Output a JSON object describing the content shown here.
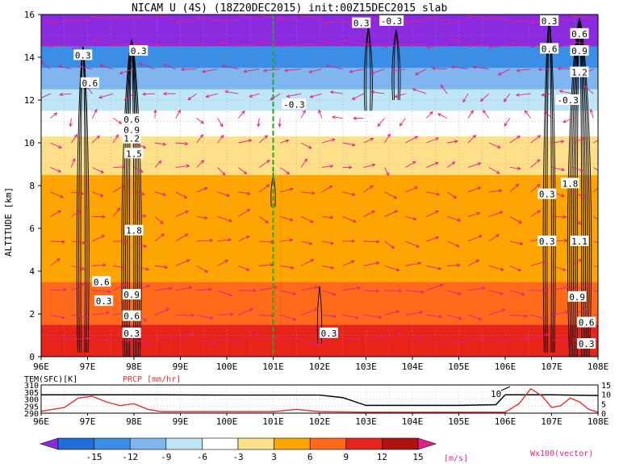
{
  "title": "NICAM U (4S) (18Z20DEC2015) init:00Z15DEC2015 slab",
  "colors": {
    "background": "#ffffff",
    "contour": "#000000",
    "vector": "#e0208a",
    "marker_line": "#22aa22",
    "precip_line": "#e03030",
    "temp_line": "#000000"
  },
  "chart_data": [
    {
      "type": "heatmap",
      "title": "NICAM U (4S) (18Z20DEC2015) init:00Z15DEC2015 slab",
      "ylabel": "ALTITUDE [km]",
      "xlabel": "",
      "xlim": [
        96,
        108
      ],
      "ylim": [
        0,
        16
      ],
      "x_ticks": [
        "96E",
        "97E",
        "98E",
        "99E",
        "100E",
        "101E",
        "102E",
        "103E",
        "104E",
        "105E",
        "106E",
        "107E",
        "108E"
      ],
      "y_ticks": [
        "0",
        "2",
        "4",
        "6",
        "8",
        "10",
        "12",
        "14",
        "16"
      ],
      "grid": true,
      "overlays": [
        "black contour lines of vertical velocity",
        "magenta wind vectors"
      ],
      "vertical_marker_lon": 101,
      "layers": [
        {
          "zmin": 0,
          "zmax": 1.5,
          "u": 13
        },
        {
          "zmin": 1.5,
          "zmax": 3.5,
          "u": 10
        },
        {
          "zmin": 3.5,
          "zmax": 6,
          "u": 7
        },
        {
          "zmin": 6,
          "zmax": 8.5,
          "u": 6
        },
        {
          "zmin": 8.5,
          "zmax": 10.3,
          "u": 4
        },
        {
          "zmin": 10.3,
          "zmax": 11.5,
          "u": 0
        },
        {
          "zmin": 11.5,
          "zmax": 12.5,
          "u": -5
        },
        {
          "zmin": 12.5,
          "zmax": 13.5,
          "u": -8
        },
        {
          "zmin": 13.5,
          "zmax": 14.5,
          "u": -11
        },
        {
          "zmin": 14.5,
          "zmax": 16,
          "u": -16
        }
      ],
      "contour_labels": [
        {
          "text": "0.3",
          "lon": 96.9,
          "alt": 14.1
        },
        {
          "text": "0.6",
          "lon": 97.05,
          "alt": 12.8
        },
        {
          "text": "0.3",
          "lon": 98.1,
          "alt": 14.3
        },
        {
          "text": "0.6",
          "lon": 97.95,
          "alt": 11.1
        },
        {
          "text": "0.9",
          "lon": 97.95,
          "alt": 10.6
        },
        {
          "text": "1.2",
          "lon": 97.95,
          "alt": 10.2
        },
        {
          "text": "1.5",
          "lon": 98.0,
          "alt": 9.5
        },
        {
          "text": "1.8",
          "lon": 98.0,
          "alt": 5.9
        },
        {
          "text": "0.6",
          "lon": 97.3,
          "alt": 3.5
        },
        {
          "text": "0.3",
          "lon": 97.35,
          "alt": 2.6
        },
        {
          "text": "0.9",
          "lon": 97.95,
          "alt": 2.9
        },
        {
          "text": "0.6",
          "lon": 97.95,
          "alt": 1.9
        },
        {
          "text": "0.3",
          "lon": 97.95,
          "alt": 1.1
        },
        {
          "text": "-0.3",
          "lon": 101.45,
          "alt": 11.8
        },
        {
          "text": "0.3",
          "lon": 102.2,
          "alt": 1.1
        },
        {
          "text": "0.3",
          "lon": 102.9,
          "alt": 15.6
        },
        {
          "text": "-0.3",
          "lon": 103.55,
          "alt": 15.7
        },
        {
          "text": "0.3",
          "lon": 106.95,
          "alt": 15.7
        },
        {
          "text": "0.6",
          "lon": 106.95,
          "alt": 14.4
        },
        {
          "text": "0.6",
          "lon": 107.6,
          "alt": 15.1
        },
        {
          "text": "0.9",
          "lon": 107.6,
          "alt": 14.3
        },
        {
          "text": "1.2",
          "lon": 107.6,
          "alt": 13.3
        },
        {
          "text": "-0.3",
          "lon": 107.35,
          "alt": 12.0
        },
        {
          "text": "0.3",
          "lon": 106.9,
          "alt": 7.6
        },
        {
          "text": "1.8",
          "lon": 107.4,
          "alt": 8.1
        },
        {
          "text": "0.3",
          "lon": 106.9,
          "alt": 5.4
        },
        {
          "text": "1.1",
          "lon": 107.6,
          "alt": 5.4
        },
        {
          "text": "0.9",
          "lon": 107.55,
          "alt": 2.8
        },
        {
          "text": "0.6",
          "lon": 107.75,
          "alt": 1.6
        },
        {
          "text": "0.3",
          "lon": 107.75,
          "alt": 0.6
        }
      ],
      "colorbar": {
        "levels": [
          "-15",
          "-12",
          "-9",
          "-6",
          "-3",
          "3",
          "6",
          "9",
          "12",
          "15"
        ],
        "colors": [
          "#8a2be2",
          "#1e6fd9",
          "#3a8ee6",
          "#7fb6f0",
          "#bfe6f5",
          "#ffffff",
          "#ffe08a",
          "#ffa500",
          "#ff6a1a",
          "#e8241a",
          "#b01010",
          "#e0208a"
        ],
        "unit": "[m/s]",
        "vector_label": "Wx100(vector)"
      }
    },
    {
      "type": "line",
      "title": "",
      "xlim": [
        96,
        108
      ],
      "x_ticks": [
        "96E",
        "97E",
        "98E",
        "99E",
        "100E",
        "101E",
        "102E",
        "103E",
        "104E",
        "105E",
        "106E",
        "107E",
        "108E"
      ],
      "left_axis": {
        "label": "TEM(SFC)[K]",
        "ticks": [
          "290",
          "295",
          "300",
          "305",
          "310"
        ],
        "range": [
          290,
          310
        ]
      },
      "right_axis": {
        "label": "PRCP [mm/hr]",
        "ticks": [
          "0",
          "5",
          "10",
          "15"
        ],
        "range": [
          0,
          15
        ]
      },
      "annotation": "10",
      "series": [
        {
          "name": "TEM(SFC)[K]",
          "x": [
            96,
            98.5,
            100,
            101,
            102,
            102.5,
            103,
            104,
            105,
            105.8,
            106,
            107,
            108
          ],
          "y": [
            303,
            303,
            302.8,
            302.8,
            302.8,
            301,
            295.5,
            295.5,
            295.5,
            296,
            303,
            303,
            302.5
          ]
        },
        {
          "name": "PRCP [mm/hr]",
          "x": [
            96,
            96.5,
            96.8,
            97.1,
            97.4,
            97.7,
            98.0,
            98.3,
            98.6,
            99,
            100,
            101,
            101.5,
            102,
            103,
            104,
            105,
            106,
            106.3,
            106.55,
            106.8,
            107.0,
            107.2,
            107.4,
            107.6,
            107.8,
            108
          ],
          "y": [
            1,
            3,
            8,
            9,
            6,
            4,
            5,
            2,
            0.8,
            0.8,
            0.8,
            0.8,
            2,
            0.8,
            0.5,
            0.5,
            0.5,
            0.5,
            5,
            13,
            9,
            3,
            4,
            8,
            6,
            2,
            0.5
          ]
        }
      ]
    }
  ]
}
